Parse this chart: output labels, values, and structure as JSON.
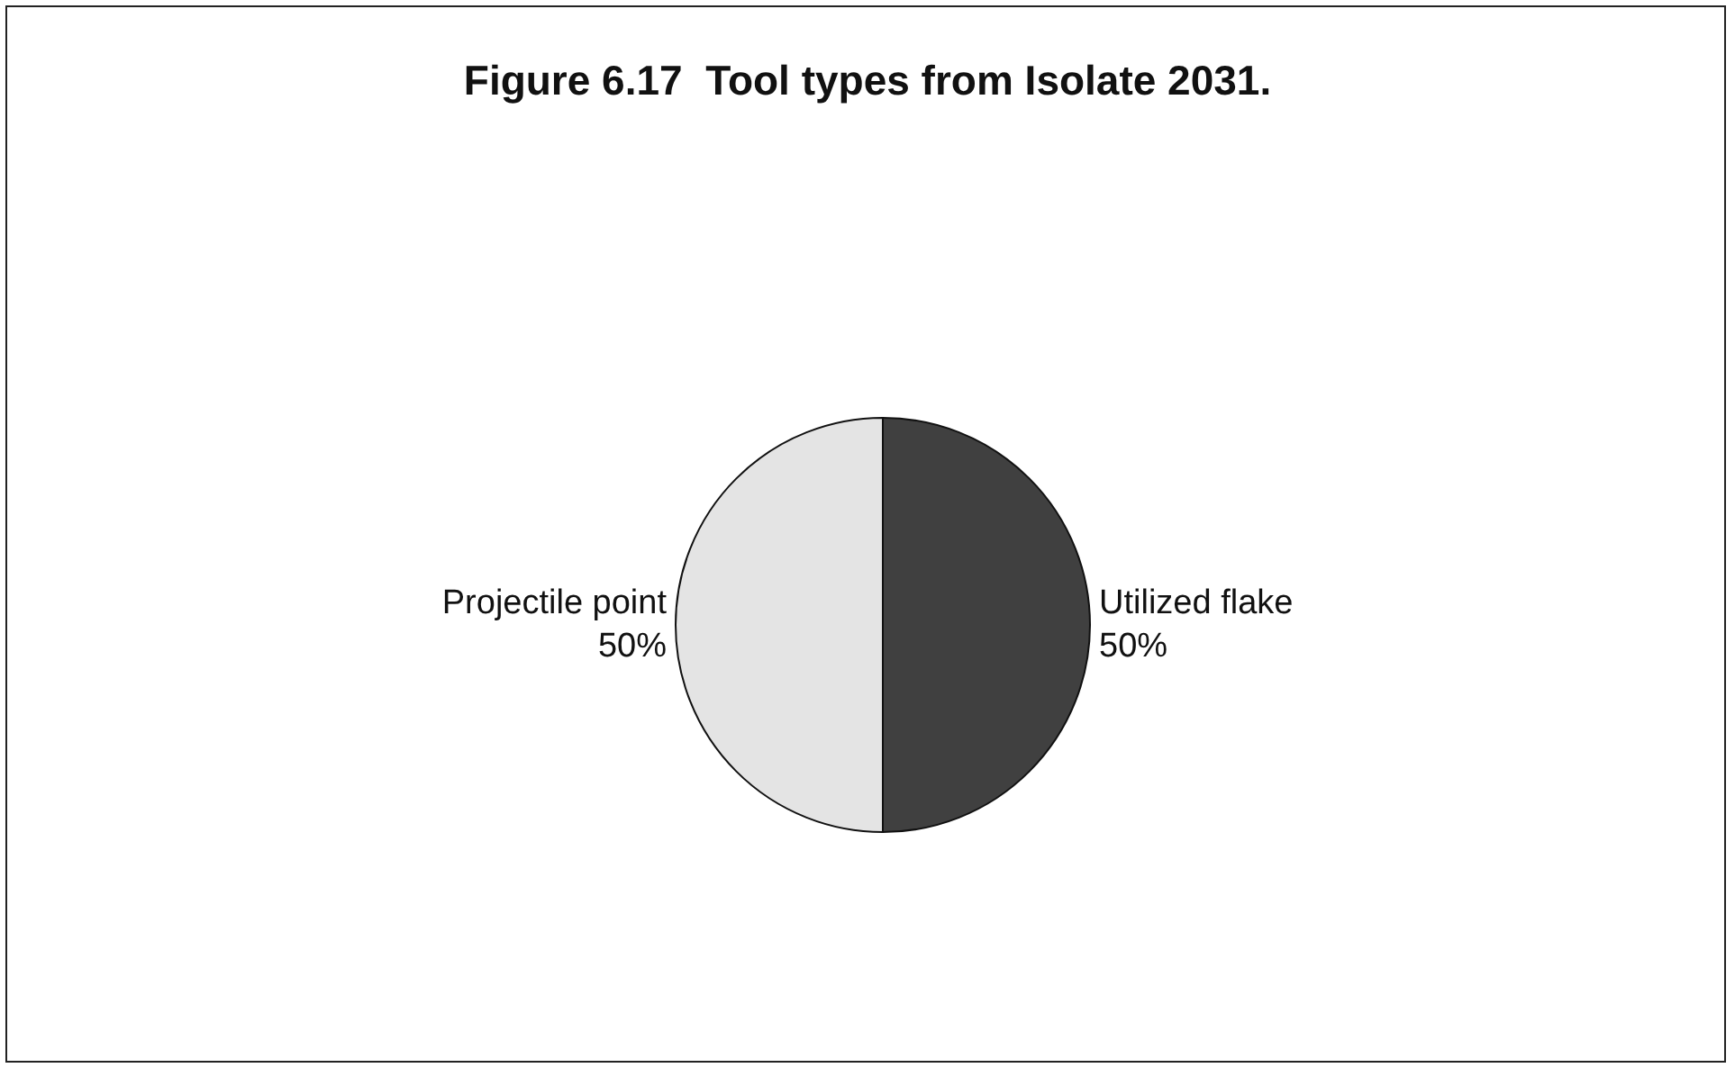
{
  "chart_data": {
    "type": "pie",
    "title": "Figure 6.17  Tool types from Isolate 2031.",
    "categories": [
      "Utilized flake",
      "Projectile point"
    ],
    "values": [
      50,
      50
    ],
    "colors": [
      "#404040",
      "#e4e4e4"
    ],
    "value_labels": [
      "50%",
      "50%"
    ],
    "legend": false
  }
}
